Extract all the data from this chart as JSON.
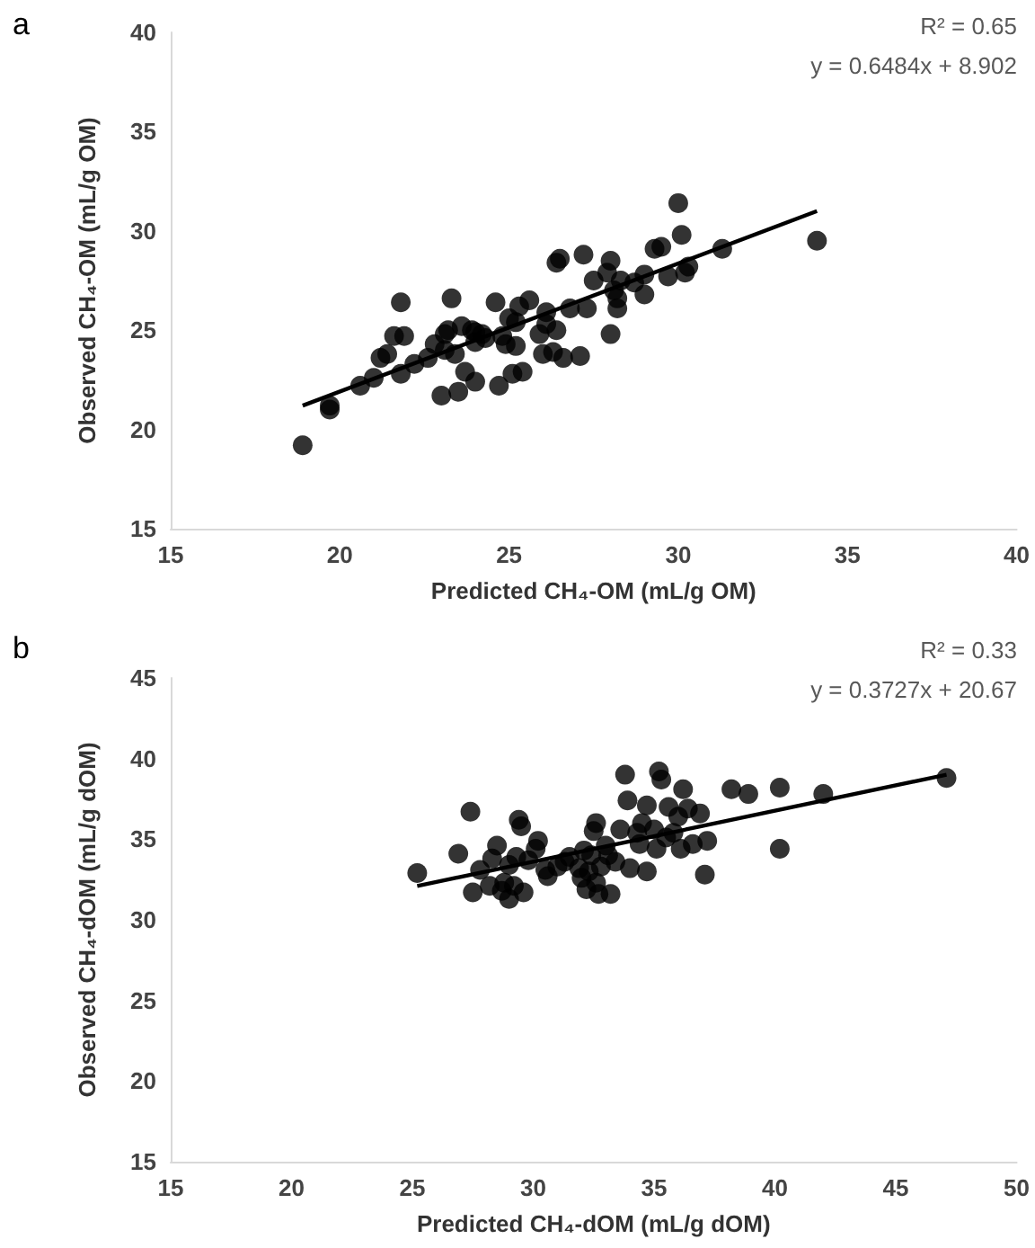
{
  "chart_data": [
    {
      "type": "scatter",
      "title": "a",
      "xlabel": "Predicted CH₄-OM (mL/g OM)",
      "ylabel": "Observed CH₄-OM (mL/g OM)",
      "annotations": [
        "R² = 0.65",
        "y = 0.6484x + 8.902"
      ],
      "xlim": [
        15,
        40
      ],
      "ylim": [
        15,
        40
      ],
      "xticks": [
        15,
        20,
        25,
        30,
        35,
        40
      ],
      "yticks": [
        15,
        20,
        25,
        30,
        35,
        40
      ],
      "grid": false,
      "marker": "circle",
      "series": [
        {
          "color": "#000000",
          "x": [
            18.9,
            19.7,
            19.7,
            20.6,
            21.0,
            21.2,
            21.4,
            21.6,
            21.8,
            21.9,
            21.8,
            22.2,
            22.6,
            22.8,
            23.0,
            23.1,
            23.1,
            23.2,
            23.3,
            23.4,
            23.5,
            23.7,
            23.6,
            23.9,
            24.0,
            24.0,
            24.0,
            24.2,
            24.3,
            24.6,
            24.7,
            24.8,
            24.9,
            25.0,
            25.1,
            25.2,
            25.2,
            25.4,
            25.3,
            25.6,
            25.9,
            26.0,
            26.1,
            26.1,
            26.3,
            26.4,
            26.4,
            26.5,
            26.6,
            26.8,
            27.1,
            27.2,
            27.3,
            27.5,
            27.9,
            28.0,
            28.0,
            28.1,
            28.2,
            28.3,
            28.2,
            28.7,
            29.0,
            29.0,
            29.3,
            29.5,
            29.7,
            30.0,
            30.1,
            30.3,
            30.2,
            31.3,
            34.1
          ],
          "values": [
            19.2,
            21.0,
            21.2,
            22.2,
            22.6,
            23.6,
            23.8,
            24.7,
            26.4,
            24.7,
            22.8,
            23.3,
            23.6,
            24.3,
            21.7,
            24.0,
            24.8,
            25.0,
            26.6,
            23.8,
            21.9,
            22.9,
            25.2,
            25.0,
            22.4,
            24.4,
            24.9,
            24.8,
            24.6,
            26.4,
            22.2,
            24.7,
            24.3,
            25.6,
            22.8,
            24.2,
            25.4,
            22.9,
            26.2,
            26.5,
            24.8,
            23.8,
            25.3,
            25.9,
            23.9,
            25.0,
            28.4,
            28.6,
            23.6,
            26.1,
            23.7,
            28.8,
            26.1,
            27.5,
            27.9,
            28.5,
            24.8,
            27.0,
            26.6,
            27.5,
            26.1,
            27.4,
            26.8,
            27.8,
            29.1,
            29.2,
            27.7,
            31.4,
            29.8,
            28.2,
            27.9,
            29.1,
            29.5
          ]
        },
        {
          "type": "line",
          "color": "#000000",
          "x": [
            18.9,
            34.1
          ],
          "values": [
            21.2,
            31.0
          ],
          "marker": "none",
          "line_style": "solid"
        }
      ]
    },
    {
      "type": "scatter",
      "title": "b",
      "xlabel": "Predicted CH₄-dOM (mL/g dOM)",
      "ylabel": "Observed CH₄-dOM (mL/g dOM)",
      "annotations": [
        "R² = 0.33",
        "y = 0.3727x + 20.67"
      ],
      "xlim": [
        15,
        50
      ],
      "ylim": [
        15,
        45
      ],
      "xticks": [
        15,
        20,
        25,
        30,
        35,
        40,
        45,
        50
      ],
      "yticks": [
        15,
        20,
        25,
        30,
        35,
        40,
        45
      ],
      "grid": false,
      "marker": "circle",
      "series": [
        {
          "color": "#000000",
          "x": [
            25.2,
            26.9,
            27.4,
            27.5,
            27.8,
            28.2,
            28.3,
            28.5,
            28.7,
            28.8,
            29.0,
            29.0,
            29.2,
            29.3,
            29.4,
            29.5,
            29.6,
            29.8,
            30.1,
            30.2,
            30.5,
            30.6,
            31.0,
            31.3,
            31.5,
            31.9,
            32.0,
            32.1,
            32.2,
            32.3,
            32.4,
            32.5,
            32.6,
            32.6,
            32.7,
            32.8,
            33.0,
            33.1,
            33.2,
            33.4,
            33.6,
            33.8,
            33.9,
            34.0,
            34.3,
            34.4,
            34.5,
            34.7,
            34.7,
            35.0,
            35.1,
            35.2,
            35.3,
            35.5,
            35.6,
            35.8,
            36.0,
            36.1,
            36.2,
            36.4,
            36.6,
            36.9,
            37.1,
            37.2,
            38.2,
            38.9,
            40.2,
            40.2,
            42.0,
            47.1
          ],
          "values": [
            32.9,
            34.1,
            36.7,
            31.7,
            33.1,
            32.1,
            33.8,
            34.6,
            31.8,
            32.3,
            31.3,
            33.4,
            32.1,
            33.9,
            36.2,
            35.8,
            31.7,
            33.7,
            34.4,
            34.9,
            33.1,
            32.7,
            33.3,
            33.6,
            33.9,
            33.2,
            32.6,
            34.3,
            31.9,
            33.0,
            34.0,
            35.5,
            36.0,
            32.3,
            31.6,
            33.3,
            34.6,
            34.0,
            31.6,
            33.6,
            35.6,
            39.0,
            37.4,
            33.2,
            35.4,
            34.7,
            36.0,
            33.0,
            37.1,
            35.6,
            34.4,
            39.2,
            38.7,
            35.1,
            37.0,
            35.4,
            36.4,
            34.4,
            38.1,
            36.9,
            34.7,
            36.6,
            32.8,
            34.9,
            38.1,
            37.8,
            34.4,
            38.2,
            37.8,
            38.8
          ]
        },
        {
          "type": "line",
          "color": "#000000",
          "x": [
            25.2,
            47.1
          ],
          "values": [
            32.1,
            39.0
          ],
          "marker": "none",
          "line_style": "solid"
        }
      ]
    }
  ]
}
